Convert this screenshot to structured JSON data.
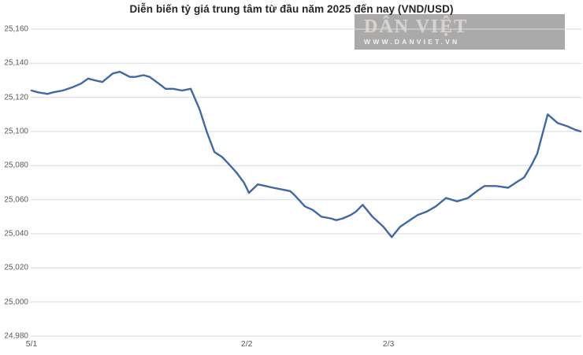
{
  "title": "Diễn biến tỷ giá trung tâm từ đầu năm 2025 đến nay (VND/USD)",
  "watermark": {
    "brand": "DÂN VIỆT",
    "url": "WWW.DANVIET.VN"
  },
  "colors": {
    "line": "#3e68a6",
    "grid": "#d9d9d9",
    "axis_text": "#595959",
    "title_text": "#262626",
    "watermark_bg": "#9e9e9e",
    "watermark_brand": "#d9d2cd",
    "watermark_url": "#f4f2f0"
  },
  "chart_data": {
    "type": "line",
    "title": "Diễn biến tỷ giá trung tâm từ đầu năm 2025 đến nay (VND/USD)",
    "xlabel": "",
    "ylabel": "",
    "ylim": [
      24980,
      25160
    ],
    "grid": true,
    "legend": false,
    "y_ticks": [
      {
        "v": 25160,
        "label": "25,160"
      },
      {
        "v": 25140,
        "label": "25,140"
      },
      {
        "v": 25120,
        "label": "25,120"
      },
      {
        "v": 25100,
        "label": "25,100"
      },
      {
        "v": 25080,
        "label": "25,080"
      },
      {
        "v": 25060,
        "label": "25,060"
      },
      {
        "v": 25040,
        "label": "25,040"
      },
      {
        "v": 25020,
        "label": "25,020"
      },
      {
        "v": 25000,
        "label": "25,000"
      },
      {
        "v": 24980,
        "label": "24,980"
      }
    ],
    "x_ticks": [
      {
        "label": "5/1",
        "pos": 0.0
      },
      {
        "label": "2/2",
        "pos": 0.392
      },
      {
        "label": "2/3",
        "pos": 0.65
      }
    ],
    "series": [
      {
        "x_fractions": [
          0.0,
          0.011,
          0.029,
          0.04,
          0.057,
          0.075,
          0.09,
          0.103,
          0.115,
          0.129,
          0.148,
          0.161,
          0.179,
          0.189,
          0.204,
          0.215,
          0.232,
          0.244,
          0.258,
          0.274,
          0.29,
          0.306,
          0.319,
          0.333,
          0.347,
          0.359,
          0.373,
          0.387,
          0.396,
          0.412,
          0.426,
          0.44,
          0.456,
          0.471,
          0.478,
          0.498,
          0.512,
          0.528,
          0.545,
          0.555,
          0.567,
          0.581,
          0.591,
          0.603,
          0.621,
          0.641,
          0.656,
          0.671,
          0.689,
          0.703,
          0.72,
          0.736,
          0.755,
          0.775,
          0.795,
          0.811,
          0.825,
          0.846,
          0.868,
          0.882,
          0.897,
          0.91,
          0.921,
          0.94,
          0.958,
          0.976,
          0.99,
          1.0
        ],
        "values": [
          25124,
          25123,
          25122,
          25123,
          25124,
          25126,
          25128,
          25131,
          25130,
          25129,
          25134,
          25135,
          25132,
          25132,
          25133,
          25132,
          25128,
          25125,
          25125,
          25124,
          25125,
          25113,
          25100,
          25088,
          25085,
          25081,
          25076,
          25070,
          25064,
          25069,
          25068,
          25067,
          25066,
          25065,
          25063,
          25056,
          25054,
          25050,
          25049,
          25048,
          25049,
          25051,
          25053,
          25057,
          25050,
          25044,
          25038,
          25044,
          25048,
          25051,
          25053,
          25056,
          25061,
          25059,
          25061,
          25065,
          25068,
          25068,
          25067,
          25070,
          25073,
          25080,
          25087,
          25110,
          25105,
          25103,
          25101,
          25100
        ]
      }
    ]
  }
}
